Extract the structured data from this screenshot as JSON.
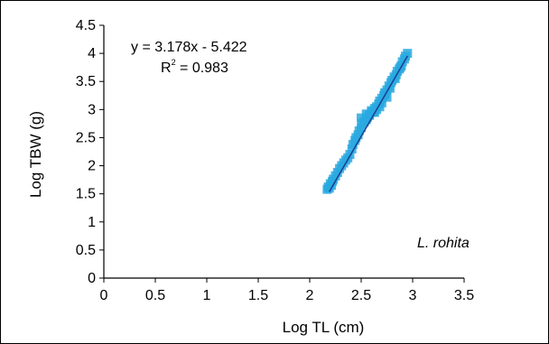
{
  "chart_data": {
    "type": "scatter",
    "title": "",
    "xlabel": "Log TL (cm)",
    "ylabel": "Log TBW (g)",
    "xlim": [
      0,
      3.5
    ],
    "ylim": [
      0,
      4.5
    ],
    "xticks": [
      0,
      0.5,
      1,
      1.5,
      2,
      2.5,
      3,
      3.5
    ],
    "yticks": [
      0,
      0.5,
      1,
      1.5,
      2,
      2.5,
      3,
      3.5,
      4,
      4.5
    ],
    "xtick_labels": [
      "0",
      "0.5",
      "1",
      "1.5",
      "2",
      "2.5",
      "3",
      "3.5"
    ],
    "ytick_labels": [
      "0",
      "0.5",
      "1",
      "1.5",
      "2",
      "2.5",
      "3",
      "3.5",
      "4",
      "4.5"
    ],
    "grid": false,
    "marker_color": "#29a9e1",
    "line_color": "#1a3f8f",
    "equation": "y = 3.178x - 5.422",
    "r2_label": "R",
    "r2_superscript": "2",
    "r2_value": " = 0.983",
    "species": "L. rohita",
    "regression": {
      "slope": 3.178,
      "intercept": -5.422,
      "x_range": [
        2.19,
        2.95
      ]
    },
    "series": [
      {
        "x": [
          2.17,
          2.18,
          2.19,
          2.2,
          2.21,
          2.22,
          2.23,
          2.25,
          2.27,
          2.29,
          2.31,
          2.33,
          2.35,
          2.37,
          2.39,
          2.41,
          2.42,
          2.44,
          2.45,
          2.47,
          2.48,
          2.5,
          2.51,
          2.53,
          2.55,
          2.56,
          2.58,
          2.6,
          2.62,
          2.63,
          2.65,
          2.67,
          2.68,
          2.7,
          2.72,
          2.73,
          2.75,
          2.77,
          2.79,
          2.8,
          2.82,
          2.84,
          2.85,
          2.87,
          2.89,
          2.9,
          2.92,
          2.93,
          2.95,
          2.5,
          2.55,
          2.6,
          2.65,
          2.7,
          2.75,
          2.58,
          2.63,
          2.68,
          2.73,
          2.78,
          2.83,
          2.88
        ],
        "y": [
          1.58,
          1.62,
          1.6,
          1.68,
          1.65,
          1.72,
          1.76,
          1.82,
          1.88,
          1.95,
          2.0,
          2.05,
          2.1,
          2.14,
          2.2,
          2.3,
          2.38,
          2.45,
          2.5,
          2.55,
          2.62,
          2.68,
          2.75,
          2.78,
          2.82,
          2.86,
          2.9,
          2.95,
          2.96,
          3.02,
          3.05,
          3.1,
          3.15,
          3.2,
          3.25,
          3.3,
          3.35,
          3.42,
          3.48,
          3.52,
          3.58,
          3.62,
          3.68,
          3.72,
          3.78,
          3.85,
          3.9,
          3.95,
          4.0,
          2.85,
          2.92,
          2.98,
          3.0,
          3.12,
          3.22,
          2.9,
          2.95,
          3.05,
          3.28,
          3.38,
          3.55,
          3.75
        ]
      }
    ]
  }
}
